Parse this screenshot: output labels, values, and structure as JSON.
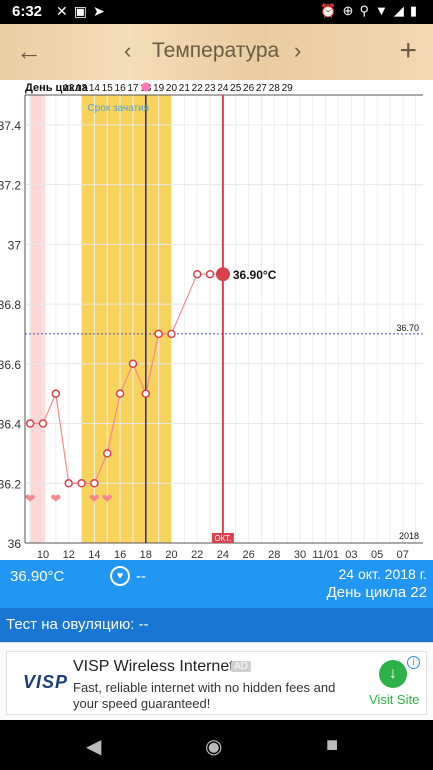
{
  "status_bar": {
    "time": "6:32",
    "icons": [
      "missed-call-icon",
      "photo-icon",
      "navigation-icon",
      "alarm-icon",
      "add-circle-icon",
      "location-icon",
      "wifi-icon",
      "signal-icon",
      "battery-icon"
    ]
  },
  "app_bar": {
    "title": "Температура",
    "back_icon": "arrow-left-icon",
    "prev_icon": "chevron-left-icon",
    "next_icon": "chevron-right-icon",
    "add_icon": "plus-icon"
  },
  "chart_data": {
    "type": "line",
    "cycle_label": "День цикла",
    "fertile_label": "Срок зачатия",
    "cycle_days": [
      "12",
      "13",
      "14",
      "15",
      "16",
      "17",
      "18",
      "19",
      "20",
      "21",
      "22",
      "23",
      "24",
      "25",
      "26",
      "27",
      "28",
      "29"
    ],
    "x_ticks": [
      "10",
      "12",
      "14",
      "16",
      "18",
      "20",
      "22",
      "24",
      "26",
      "28",
      "30",
      "11/01",
      "03",
      "05",
      "07"
    ],
    "y_ticks": [
      "36",
      "36.2",
      "36.4",
      "36.6",
      "36.8",
      "37",
      "37.2",
      "37.4"
    ],
    "ylim": [
      36.0,
      37.5
    ],
    "points_x": [
      9,
      10,
      11,
      12,
      13,
      14,
      15,
      16,
      17,
      18,
      19,
      20,
      22,
      23,
      24
    ],
    "points_y": [
      36.4,
      36.4,
      36.5,
      36.2,
      36.2,
      36.2,
      36.3,
      36.5,
      36.6,
      36.5,
      36.7,
      36.7,
      36.9,
      36.9,
      36.9
    ],
    "hearts_x": [
      9,
      11,
      14,
      15
    ],
    "coverline": {
      "value": 36.7,
      "label": "36.70"
    },
    "current": {
      "x": 24,
      "value": 36.9,
      "label": "36.90°C"
    },
    "ovulation_x": 18,
    "fertile_window": [
      13,
      20
    ],
    "period_window": [
      9,
      10
    ],
    "month_label": "ОКТ.",
    "year_label": "2018",
    "colors": {
      "line": "#f28b8b",
      "current": "#d9414d",
      "fertile": "#f7d35c",
      "period": "#ffd6d6",
      "ovulation": "#1d2b6b",
      "coverline": "#3f51b5"
    }
  },
  "info_bar": {
    "temperature": "36.90°C",
    "heart_icon": "heart-icon",
    "heart_value": "--",
    "date": "24 окт. 2018 г.",
    "cycle_day": "День цикла 22"
  },
  "ovulation_test": {
    "label": "Тест на овуляцию: --"
  },
  "ad": {
    "logo": "VISP",
    "title": "VISP Wireless Internet",
    "badge": "AD",
    "description": "Fast, reliable internet with no hidden fees and your speed guaranteed!",
    "cta": "Visit Site",
    "info_icon": "info-icon",
    "cta_icon": "download-arrow-icon"
  },
  "nav_bar": {
    "back": "triangle-back-icon",
    "home": "circle-home-icon",
    "recents": "square-recents-icon"
  }
}
